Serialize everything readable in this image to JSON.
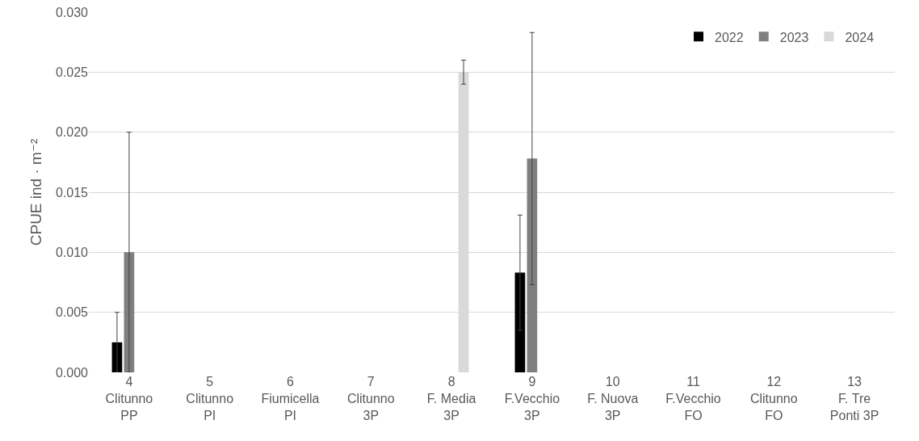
{
  "chart_data": {
    "type": "bar",
    "ylabel": "CPUE ind · m⁻²",
    "categories": [
      "4\nClitunno\nPP",
      "5\nClitunno\nPI",
      "6\nFiumicella\nPI",
      "7\nClitunno\n3P",
      "8\nF. Media\n3P",
      "9\nF.Vecchio\n3P",
      "10\nF. Nuova\n3P",
      "11\nF.Vecchio\nFO",
      "12\nClitunno\nFO",
      "13\nF. Tre\nPonti 3P"
    ],
    "series": [
      {
        "name": "2022",
        "color": "#000000",
        "values": [
          0.0025,
          null,
          null,
          null,
          null,
          0.0083,
          null,
          null,
          null,
          null
        ],
        "errors": [
          0.0025,
          null,
          null,
          null,
          null,
          [
            0.0035,
            0.0131
          ],
          null,
          null,
          null,
          null
        ]
      },
      {
        "name": "2023",
        "color": "#7f7f7f",
        "values": [
          0.01,
          null,
          null,
          null,
          null,
          0.0178,
          null,
          null,
          null,
          null
        ],
        "errors": [
          0.01,
          null,
          null,
          null,
          null,
          [
            0.0073,
            0.0283
          ],
          null,
          null,
          null,
          null
        ]
      },
      {
        "name": "2024",
        "color": "#d9d9d9",
        "values": [
          null,
          null,
          null,
          null,
          0.025,
          null,
          null,
          null,
          null,
          null
        ],
        "errors": [
          null,
          null,
          null,
          null,
          [
            0.024,
            0.026
          ],
          null,
          null,
          null,
          null,
          null
        ]
      }
    ],
    "ylim": [
      0,
      0.03
    ],
    "yticks": [
      {
        "value": 0,
        "label": "0.000"
      },
      {
        "value": 0.005,
        "label": "0.005"
      },
      {
        "value": 0.01,
        "label": "0.010"
      },
      {
        "value": 0.015,
        "label": "0.015"
      },
      {
        "value": 0.02,
        "label": "0.020"
      },
      {
        "value": 0.025,
        "label": "0.025"
      },
      {
        "value": 0.03,
        "label": "0.030"
      }
    ],
    "grid": "y",
    "legend": "top right"
  }
}
